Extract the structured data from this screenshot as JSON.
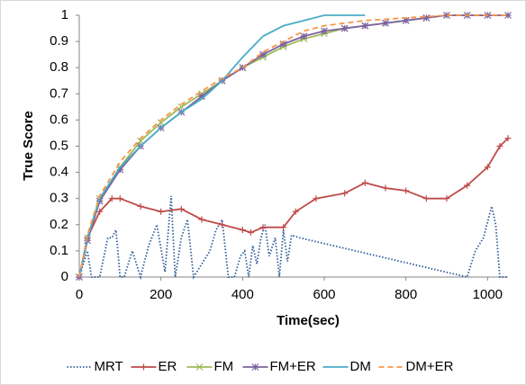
{
  "chart_data": {
    "type": "line",
    "x_label": "Time(sec)",
    "y_label": "True Score",
    "xlim": [
      0,
      1050
    ],
    "xticks": [
      0,
      200,
      400,
      600,
      800,
      1000
    ],
    "ylim": [
      0,
      1
    ],
    "yticks": [
      0,
      0.1,
      0.2,
      0.3,
      0.4,
      0.5,
      0.6,
      0.7,
      0.8,
      0.9,
      1
    ],
    "legend": "bottom",
    "series": [
      {
        "name": "MRT",
        "color": "#2e5c9a",
        "dash": "dotted",
        "marker": "none",
        "x": [
          0,
          10,
          20,
          30,
          50,
          70,
          80,
          90,
          100,
          110,
          130,
          150,
          170,
          190,
          210,
          225,
          235,
          250,
          265,
          280,
          300,
          320,
          335,
          350,
          365,
          380,
          395,
          405,
          415,
          425,
          435,
          445,
          455,
          465,
          480,
          490,
          500,
          510,
          520,
          540,
          950,
          970,
          990,
          1010,
          1020,
          1030,
          1050
        ],
        "values": [
          0,
          0.05,
          0.1,
          0,
          0,
          0.15,
          0.15,
          0.18,
          0,
          0,
          0.1,
          0,
          0.12,
          0.2,
          0.02,
          0.31,
          0,
          0.15,
          0.22,
          0,
          0.05,
          0.1,
          0.18,
          0.22,
          0,
          0,
          0.08,
          0.1,
          0,
          0.12,
          0.05,
          0.15,
          0.2,
          0.08,
          0.15,
          0,
          0.18,
          0.06,
          0.16,
          0.15,
          0,
          0.1,
          0.15,
          0.27,
          0.2,
          0,
          0
        ]
      },
      {
        "name": "ER",
        "color": "#be4b48",
        "dash": "solid",
        "marker": "plus",
        "x": [
          0,
          20,
          50,
          80,
          100,
          150,
          200,
          250,
          300,
          350,
          400,
          420,
          450,
          500,
          530,
          580,
          650,
          700,
          750,
          800,
          850,
          900,
          950,
          1000,
          1030,
          1050
        ],
        "values": [
          0,
          0.15,
          0.25,
          0.3,
          0.3,
          0.27,
          0.25,
          0.26,
          0.22,
          0.2,
          0.18,
          0.17,
          0.19,
          0.19,
          0.25,
          0.3,
          0.32,
          0.36,
          0.34,
          0.33,
          0.3,
          0.3,
          0.35,
          0.42,
          0.5,
          0.53
        ]
      },
      {
        "name": "FM",
        "color": "#9bbb59",
        "dash": "solid",
        "marker": "cross",
        "x": [
          0,
          20,
          50,
          100,
          150,
          200,
          250,
          300,
          350,
          400,
          450,
          500,
          550,
          600,
          650,
          700,
          750,
          800,
          850,
          900,
          950,
          1000
        ],
        "values": [
          0,
          0.15,
          0.3,
          0.42,
          0.52,
          0.59,
          0.65,
          0.7,
          0.75,
          0.8,
          0.84,
          0.88,
          0.91,
          0.93,
          0.95,
          0.96,
          0.97,
          0.98,
          0.99,
          1,
          1,
          1
        ]
      },
      {
        "name": "FM+ER",
        "color": "#7e62a1",
        "dash": "solid",
        "marker": "star",
        "x": [
          0,
          20,
          50,
          100,
          150,
          200,
          250,
          300,
          350,
          400,
          450,
          500,
          550,
          600,
          650,
          700,
          750,
          800,
          850,
          900,
          950,
          1000,
          1050
        ],
        "values": [
          0,
          0.14,
          0.29,
          0.41,
          0.5,
          0.57,
          0.63,
          0.69,
          0.75,
          0.8,
          0.85,
          0.89,
          0.92,
          0.94,
          0.95,
          0.96,
          0.97,
          0.98,
          0.99,
          1,
          1,
          1,
          1
        ]
      },
      {
        "name": "DM",
        "color": "#4bacc6",
        "dash": "solid",
        "marker": "none",
        "x": [
          0,
          20,
          50,
          100,
          150,
          200,
          250,
          300,
          350,
          400,
          450,
          500,
          550,
          600,
          700
        ],
        "values": [
          0,
          0.15,
          0.3,
          0.42,
          0.5,
          0.57,
          0.63,
          0.68,
          0.75,
          0.84,
          0.92,
          0.96,
          0.98,
          1,
          1
        ]
      },
      {
        "name": "DM+ER",
        "color": "#f79646",
        "dash": "dashed",
        "marker": "none",
        "x": [
          0,
          20,
          50,
          100,
          150,
          200,
          250,
          300,
          350,
          400,
          450,
          500,
          550,
          600,
          700,
          800,
          900,
          1000,
          1050
        ],
        "values": [
          0,
          0.16,
          0.31,
          0.44,
          0.53,
          0.6,
          0.66,
          0.71,
          0.76,
          0.8,
          0.86,
          0.9,
          0.94,
          0.96,
          0.98,
          0.99,
          1,
          1,
          1
        ]
      }
    ]
  }
}
